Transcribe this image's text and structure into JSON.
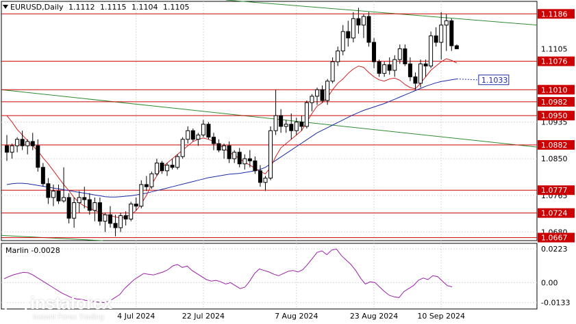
{
  "header": {
    "symbol": "EURUSD,Daily",
    "open": "1.1112",
    "high": "1.1115",
    "low": "1.1104",
    "close": "1.1105"
  },
  "watermark": {
    "name": "instaforex",
    "tagline": "Instant Forex Trading"
  },
  "oscillator": {
    "label": "Marlin -0.0028"
  },
  "colors": {
    "up": "#ffffff",
    "down": "#000000",
    "ma_red": "#cc2222",
    "ma_blue": "#1a2aa8",
    "hline": "#cc0000",
    "trend": "#2e8b2e",
    "osc": "#9b1fa8",
    "grid": "#d8d8d8"
  },
  "chart_data": [
    {
      "type": "candlestick",
      "title": "EURUSD,Daily",
      "y_ticks": [
        "1.0935",
        "1.0850",
        "1.0765",
        "1.0680"
      ],
      "x_labels": [
        "4 Jul 2024",
        "22 Jul 2024",
        "7 Aug 2024",
        "23 Aug 2024",
        "10 Sep 2024"
      ],
      "ylim": [
        1.066,
        1.1215
      ],
      "grid": true,
      "levels": [
        {
          "value": 1.1186,
          "label": "1.1186"
        },
        {
          "value": 1.1076,
          "label": "1.1076"
        },
        {
          "value": 1.101,
          "label": "1.1010"
        },
        {
          "value": 1.0982,
          "label": "1.0982"
        },
        {
          "value": 1.095,
          "label": "1.0950"
        },
        {
          "value": 1.0882,
          "label": "1.0882"
        },
        {
          "value": 1.0777,
          "label": "1.0777"
        },
        {
          "value": 1.0724,
          "label": "1.0724"
        },
        {
          "value": 1.0667,
          "label": "1.0667"
        }
      ],
      "price_label": {
        "value": 1.1105,
        "label": "1.1105"
      },
      "ma_label": {
        "value": 1.1033,
        "label": "1.1033"
      },
      "candles": [
        [
          1.088,
          1.0905,
          1.0845,
          1.0865
        ],
        [
          1.0865,
          1.0885,
          1.085,
          1.088
        ],
        [
          1.088,
          1.09,
          1.0865,
          1.0895
        ],
        [
          1.0895,
          1.0915,
          1.087,
          1.088
        ],
        [
          1.088,
          1.0895,
          1.086,
          1.089
        ],
        [
          1.089,
          1.091,
          1.087,
          1.088
        ],
        [
          1.088,
          1.0895,
          1.082,
          1.083
        ],
        [
          1.083,
          1.084,
          1.0785,
          1.0792
        ],
        [
          1.0792,
          1.0805,
          1.0745,
          1.076
        ],
        [
          1.076,
          1.079,
          1.074,
          1.0775
        ],
        [
          1.0775,
          1.079,
          1.0745,
          1.0752
        ],
        [
          1.0752,
          1.083,
          1.0748,
          1.076
        ],
        [
          1.076,
          1.077,
          1.07,
          1.0712
        ],
        [
          1.0712,
          1.076,
          1.069,
          1.0748
        ],
        [
          1.0748,
          1.0775,
          1.0725,
          1.076
        ],
        [
          1.076,
          1.0785,
          1.0735,
          1.0755
        ],
        [
          1.0755,
          1.077,
          1.072,
          1.073
        ],
        [
          1.073,
          1.076,
          1.0705,
          1.0748
        ],
        [
          1.0748,
          1.076,
          1.0695,
          1.0705
        ],
        [
          1.0705,
          1.0725,
          1.068,
          1.072
        ],
        [
          1.072,
          1.074,
          1.069,
          1.07
        ],
        [
          1.07,
          1.072,
          1.067,
          1.069
        ],
        [
          1.069,
          1.0725,
          1.068,
          1.0718
        ],
        [
          1.0718,
          1.0728,
          1.0695,
          1.071
        ],
        [
          1.071,
          1.075,
          1.0705,
          1.0745
        ],
        [
          1.0745,
          1.076,
          1.073,
          1.074
        ],
        [
          1.074,
          1.08,
          1.0735,
          1.079
        ],
        [
          1.079,
          1.081,
          1.0775,
          1.0785
        ],
        [
          1.0785,
          1.082,
          1.078,
          1.0815
        ],
        [
          1.0815,
          1.085,
          1.081,
          1.084
        ],
        [
          1.084,
          1.0845,
          1.0815,
          1.0822
        ],
        [
          1.0822,
          1.084,
          1.081,
          1.0835
        ],
        [
          1.0835,
          1.085,
          1.0825,
          1.083
        ],
        [
          1.083,
          1.086,
          1.0825,
          1.0855
        ],
        [
          1.0855,
          1.09,
          1.085,
          1.0895
        ],
        [
          1.0895,
          1.0925,
          1.0885,
          1.0915
        ],
        [
          1.0915,
          1.092,
          1.089,
          1.0895
        ],
        [
          1.0895,
          1.091,
          1.088,
          1.0905
        ],
        [
          1.0905,
          1.094,
          1.09,
          1.093
        ],
        [
          1.093,
          1.0935,
          1.0895,
          1.09
        ],
        [
          1.09,
          1.091,
          1.087,
          1.0885
        ],
        [
          1.0885,
          1.0895,
          1.0865,
          1.087
        ],
        [
          1.087,
          1.0885,
          1.085,
          1.088
        ],
        [
          1.088,
          1.089,
          1.084,
          1.085
        ],
        [
          1.085,
          1.087,
          1.084,
          1.0865
        ],
        [
          1.0865,
          1.0875,
          1.083,
          1.0838
        ],
        [
          1.0838,
          1.086,
          1.0825,
          1.085
        ],
        [
          1.085,
          1.087,
          1.083,
          1.0845
        ],
        [
          1.0845,
          1.0855,
          1.0815,
          1.0822
        ],
        [
          1.0822,
          1.0835,
          1.0785,
          1.0795
        ],
        [
          1.0795,
          1.081,
          1.0775,
          1.0805
        ],
        [
          1.0805,
          1.0925,
          1.08,
          1.0915
        ],
        [
          1.0915,
          1.101,
          1.0905,
          1.095
        ],
        [
          1.095,
          1.0965,
          1.091,
          1.0925
        ],
        [
          1.0925,
          1.094,
          1.091,
          1.093
        ],
        [
          1.093,
          1.0955,
          1.0895,
          1.0915
        ],
        [
          1.0915,
          1.0945,
          1.0905,
          1.0935
        ],
        [
          1.0935,
          1.095,
          1.0915,
          1.0925
        ],
        [
          1.0925,
          1.0985,
          1.092,
          1.098
        ],
        [
          1.098,
          1.1,
          1.096,
          1.0995
        ],
        [
          1.0995,
          1.1015,
          1.0975,
          1.101
        ],
        [
          1.101,
          1.102,
          1.098,
          1.0985
        ],
        [
          1.0985,
          1.1035,
          1.0975,
          1.103
        ],
        [
          1.103,
          1.1085,
          1.1025,
          1.1075
        ],
        [
          1.1075,
          1.111,
          1.1065,
          1.11
        ],
        [
          1.11,
          1.116,
          1.109,
          1.1145
        ],
        [
          1.1145,
          1.117,
          1.111,
          1.113
        ],
        [
          1.113,
          1.119,
          1.112,
          1.1175
        ],
        [
          1.1175,
          1.12,
          1.114,
          1.116
        ],
        [
          1.116,
          1.1185,
          1.113,
          1.118
        ],
        [
          1.118,
          1.119,
          1.111,
          1.112
        ],
        [
          1.112,
          1.113,
          1.106,
          1.1075
        ],
        [
          1.1075,
          1.108,
          1.104,
          1.1048
        ],
        [
          1.1048,
          1.1075,
          1.104,
          1.1068
        ],
        [
          1.1068,
          1.1085,
          1.1045,
          1.1055
        ],
        [
          1.1055,
          1.109,
          1.104,
          1.108
        ],
        [
          1.108,
          1.1115,
          1.107,
          1.1105
        ],
        [
          1.1105,
          1.1115,
          1.1065,
          1.107
        ],
        [
          1.107,
          1.1085,
          1.103,
          1.104
        ],
        [
          1.104,
          1.105,
          1.101,
          1.1025
        ],
        [
          1.1025,
          1.108,
          1.1015,
          1.107
        ],
        [
          1.107,
          1.108,
          1.104,
          1.1065
        ],
        [
          1.1065,
          1.1145,
          1.106,
          1.1135
        ],
        [
          1.1135,
          1.1155,
          1.111,
          1.112
        ],
        [
          1.112,
          1.119,
          1.108,
          1.116
        ],
        [
          1.116,
          1.1185,
          1.11,
          1.117
        ],
        [
          1.117,
          1.1175,
          1.11,
          1.1112
        ],
        [
          1.1112,
          1.1115,
          1.1104,
          1.1105
        ]
      ],
      "ma_fast": [
        1.095,
        1.0935,
        1.0918,
        1.0905,
        1.0892,
        1.088,
        1.0868,
        1.0852,
        1.0838,
        1.0822,
        1.0806,
        1.079,
        1.0776,
        1.076,
        1.0748,
        1.074,
        1.0735,
        1.073,
        1.0725,
        1.072,
        1.0718,
        1.0715,
        1.0712,
        1.0716,
        1.072,
        1.073,
        1.0745,
        1.0765,
        1.079,
        1.081,
        1.083,
        1.084,
        1.085,
        1.086,
        1.087,
        1.088,
        1.089,
        1.0895,
        1.0898,
        1.0895,
        1.089,
        1.0882,
        1.0875,
        1.0865,
        1.0858,
        1.085,
        1.0842,
        1.0835,
        1.0828,
        1.082,
        1.0815,
        1.083,
        1.0855,
        1.0875,
        1.0885,
        1.0895,
        1.0905,
        1.0915,
        1.0935,
        1.0955,
        1.0972,
        1.098,
        1.0992,
        1.101,
        1.1025,
        1.1035,
        1.1048,
        1.1058,
        1.1065,
        1.1062,
        1.105,
        1.104,
        1.1033,
        1.103,
        1.1035,
        1.1037,
        1.1032,
        1.1022,
        1.1015,
        1.1012,
        1.1025,
        1.104,
        1.1055,
        1.1065,
        1.1075,
        1.1082,
        1.1078,
        1.1072
      ],
      "ma_slow": [
        1.079,
        1.0792,
        1.0793,
        1.0793,
        1.0792,
        1.079,
        1.0788,
        1.0786,
        1.0784,
        1.0782,
        1.078,
        1.0778,
        1.0776,
        1.0774,
        1.0772,
        1.077,
        1.0768,
        1.0766,
        1.0764,
        1.0762,
        1.0761,
        1.0761,
        1.0762,
        1.0763,
        1.0764,
        1.0766,
        1.0768,
        1.077,
        1.0773,
        1.0776,
        1.0779,
        1.0782,
        1.0785,
        1.0788,
        1.0791,
        1.0794,
        1.0797,
        1.08,
        1.0803,
        1.0806,
        1.0808,
        1.081,
        1.0812,
        1.0814,
        1.0815,
        1.0816,
        1.0818,
        1.082,
        1.0822,
        1.0825,
        1.083,
        1.0838,
        1.0846,
        1.0854,
        1.0862,
        1.087,
        1.0878,
        1.0886,
        1.0894,
        1.0902,
        1.091,
        1.0916,
        1.0922,
        1.0928,
        1.0934,
        1.094,
        1.0946,
        1.0952,
        1.0957,
        1.0962,
        1.0966,
        1.097,
        1.0974,
        1.0978,
        1.0983,
        1.0988,
        1.0993,
        1.0998,
        1.1003,
        1.1008,
        1.1013,
        1.1018,
        1.1022,
        1.1026,
        1.1029,
        1.1031,
        1.1033,
        1.1035
      ]
    },
    {
      "type": "line",
      "title": "Marlin -0.0028",
      "y_ticks": [
        "0.0223",
        "0.00",
        "-0.0133"
      ],
      "ylim": [
        -0.0175,
        0.026
      ],
      "values": [
        0.0025,
        0.004,
        0.0052,
        0.006,
        0.0068,
        0.0065,
        0.005,
        0.003,
        0.001,
        -0.001,
        -0.003,
        -0.005,
        -0.007,
        -0.0085,
        -0.01,
        -0.0108,
        -0.0112,
        -0.0118,
        -0.0122,
        -0.0128,
        -0.013,
        -0.0133,
        -0.012,
        -0.01,
        -0.008,
        -0.004,
        -0.001,
        0.002,
        0.004,
        0.006,
        0.0055,
        0.005,
        0.006,
        0.007,
        0.0085,
        0.011,
        0.012,
        0.01,
        0.011,
        0.008,
        0.006,
        0.004,
        0.002,
        0.001,
        0.0015,
        0.0005,
        -0.001,
        0.0,
        -0.002,
        -0.004,
        -0.003,
        0.001,
        0.006,
        0.009,
        0.008,
        0.007,
        0.0055,
        0.0045,
        0.006,
        0.0075,
        0.008,
        0.007,
        0.0085,
        0.012,
        0.016,
        0.02,
        0.021,
        0.0185,
        0.0215,
        0.0223,
        0.018,
        0.015,
        0.012,
        0.008,
        0.003,
        -0.001,
        0.0005,
        0.0,
        -0.003,
        -0.006,
        -0.0085,
        -0.0095,
        -0.01,
        -0.006,
        -0.004,
        -0.002,
        0.0015,
        0.003,
        0.002,
        0.0045,
        0.004,
        0.001,
        -0.002,
        -0.0028
      ]
    }
  ]
}
